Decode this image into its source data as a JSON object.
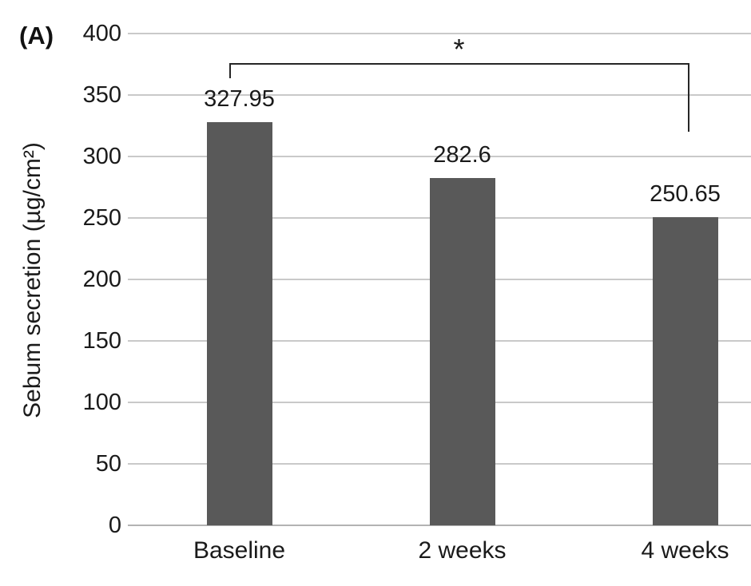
{
  "panel_label": "(A)",
  "chart_data": {
    "type": "bar",
    "title": "",
    "categories": [
      "Baseline",
      "2 weeks",
      "4 weeks"
    ],
    "values": [
      327.95,
      282.6,
      250.65
    ],
    "value_labels": [
      "327.95",
      "282.6",
      "250.65"
    ],
    "xlabel": "",
    "ylabel": "Sebum secretion (µg/cm²)",
    "ylim": [
      0,
      400
    ],
    "ytick_step": 50,
    "yticks": [
      0,
      50,
      100,
      150,
      200,
      250,
      300,
      350,
      400
    ],
    "grid": "horizontal",
    "legend": "none",
    "bar_color": "#595959",
    "significance": {
      "from": "Baseline",
      "to": "4 weeks",
      "label": "*"
    }
  },
  "colors": {
    "bar": "#595959",
    "gridline": "#c9c9c9",
    "axis_line": "#b3b3b3",
    "text": "#1a1a1a",
    "bracket": "#262626",
    "background": "#ffffff"
  }
}
